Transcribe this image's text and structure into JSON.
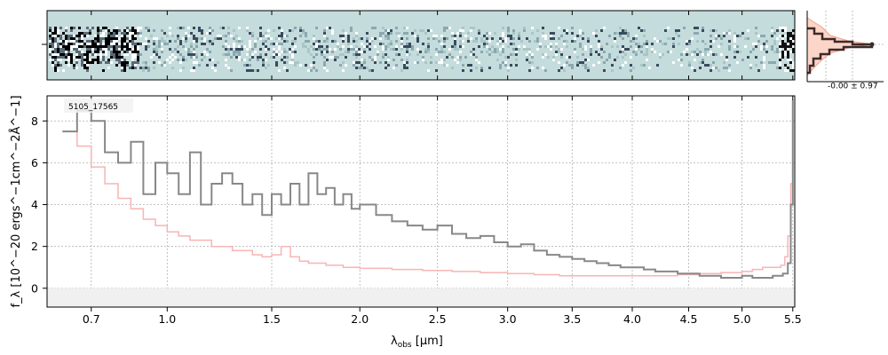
{
  "chart_data": {
    "type": "line",
    "object_label": "5105_17565",
    "xlabel_main": "λ",
    "xlabel_sub": "obs",
    "xlabel_unit": " [μm]",
    "ylabel": "f_λ [10^−20 ergs^−1cm^−2Å^−1]",
    "x_ticks": [
      0.7,
      1.0,
      1.5,
      2.0,
      2.5,
      3.0,
      3.5,
      4.0,
      4.5,
      5.0,
      5.5
    ],
    "x_tick_labels": [
      "0.7",
      "1.0",
      "1.5",
      "2.0",
      "2.5",
      "3.0",
      "3.5",
      "4.0",
      "4.5",
      "5.0",
      "5.5"
    ],
    "y_ticks": [
      0,
      2,
      4,
      6,
      8
    ],
    "y_tick_labels": [
      "0",
      "2",
      "4",
      "6",
      "8"
    ],
    "ylim": [
      -0.9,
      9.2
    ],
    "xlim": [
      0.55,
      5.52
    ],
    "x_scale": "sqrt",
    "grid": true,
    "series": [
      {
        "role": "flux",
        "color": "#888888",
        "x": [
          0.6,
          0.65,
          0.7,
          0.75,
          0.8,
          0.85,
          0.9,
          0.95,
          1.0,
          1.05,
          1.1,
          1.15,
          1.2,
          1.25,
          1.3,
          1.35,
          1.4,
          1.45,
          1.5,
          1.55,
          1.6,
          1.65,
          1.7,
          1.75,
          1.8,
          1.85,
          1.9,
          1.95,
          2.0,
          2.1,
          2.2,
          2.3,
          2.4,
          2.5,
          2.6,
          2.7,
          2.8,
          2.9,
          3.0,
          3.1,
          3.2,
          3.3,
          3.4,
          3.5,
          3.6,
          3.7,
          3.8,
          3.9,
          4.0,
          4.1,
          4.2,
          4.3,
          4.4,
          4.5,
          4.6,
          4.7,
          4.8,
          4.9,
          5.0,
          5.1,
          5.2,
          5.3,
          5.4,
          5.45,
          5.48,
          5.5
        ],
        "y": [
          7.5,
          8.5,
          8.0,
          6.5,
          6.0,
          7.0,
          4.5,
          6.0,
          5.5,
          4.5,
          6.5,
          4.0,
          5.0,
          5.5,
          5.0,
          4.0,
          4.5,
          3.5,
          4.5,
          4.0,
          5.0,
          4.0,
          5.5,
          4.5,
          4.8,
          4.0,
          4.5,
          3.8,
          4.0,
          3.5,
          3.2,
          3.0,
          2.8,
          3.0,
          2.6,
          2.4,
          2.5,
          2.2,
          2.0,
          2.1,
          1.8,
          1.6,
          1.5,
          1.4,
          1.3,
          1.2,
          1.1,
          1.0,
          1.0,
          0.9,
          0.8,
          0.8,
          0.7,
          0.7,
          0.6,
          0.6,
          0.5,
          0.5,
          0.6,
          0.5,
          0.5,
          0.6,
          0.7,
          1.2,
          4.0,
          9.0
        ]
      },
      {
        "role": "error",
        "color": "#f8b4b4",
        "x": [
          0.6,
          0.65,
          0.7,
          0.75,
          0.8,
          0.85,
          0.9,
          0.95,
          1.0,
          1.05,
          1.1,
          1.2,
          1.3,
          1.4,
          1.45,
          1.5,
          1.55,
          1.6,
          1.65,
          1.7,
          1.8,
          1.9,
          2.0,
          2.2,
          2.4,
          2.6,
          2.8,
          3.0,
          3.2,
          3.4,
          3.6,
          3.8,
          4.0,
          4.2,
          4.4,
          4.6,
          4.8,
          5.0,
          5.1,
          5.2,
          5.3,
          5.38,
          5.42,
          5.45,
          5.48,
          5.5
        ],
        "y": [
          7.5,
          6.8,
          5.8,
          5.0,
          4.3,
          3.8,
          3.3,
          3.0,
          2.7,
          2.5,
          2.3,
          2.0,
          1.8,
          1.6,
          1.5,
          1.6,
          2.0,
          1.5,
          1.3,
          1.2,
          1.1,
          1.0,
          0.95,
          0.9,
          0.85,
          0.8,
          0.75,
          0.7,
          0.65,
          0.6,
          0.6,
          0.6,
          0.6,
          0.6,
          0.65,
          0.7,
          0.75,
          0.8,
          0.9,
          1.0,
          1.0,
          1.1,
          1.5,
          2.5,
          5.0,
          9.0
        ]
      }
    ],
    "inset": {
      "label": "-0.00 ± 0.97"
    }
  }
}
